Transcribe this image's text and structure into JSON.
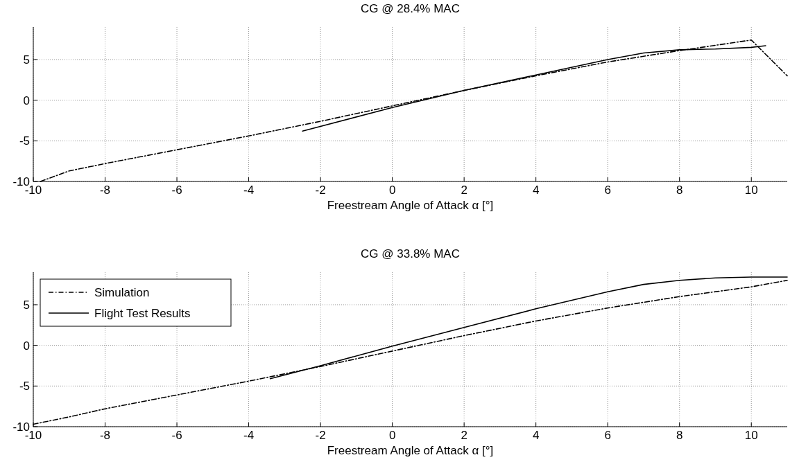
{
  "chart_data": [
    {
      "type": "line",
      "title": "CG @ 28.4% MAC",
      "xlabel": "Freestream Angle of Attack α [°]",
      "xlim": [
        -10,
        11
      ],
      "xticks": [
        -10,
        -8,
        -6,
        -4,
        -2,
        0,
        2,
        4,
        6,
        8,
        10
      ],
      "ylim": [
        -10,
        9
      ],
      "yticks": [
        -10,
        -5,
        0,
        5
      ],
      "grid": true,
      "legend": false,
      "series": [
        {
          "color": "#000000",
          "line_style": "dashed",
          "x": [
            -9.8,
            -9,
            -8,
            -6,
            -4,
            -2,
            0,
            2,
            4,
            6,
            8,
            10,
            11
          ],
          "values": [
            -10,
            -8.7,
            -7.8,
            -6.1,
            -4.4,
            -2.6,
            -0.7,
            1.2,
            3.0,
            4.7,
            6.1,
            7.4,
            3.0
          ]
        },
        {
          "color": "#000000",
          "line_style": "solid",
          "x": [
            -2.5,
            0,
            2,
            4,
            6,
            7,
            8,
            9,
            10,
            10.4
          ],
          "values": [
            -3.8,
            -0.9,
            1.2,
            3.1,
            5.0,
            5.8,
            6.2,
            6.3,
            6.5,
            6.7
          ]
        }
      ]
    },
    {
      "type": "line",
      "title": "CG @ 33.8% MAC",
      "xlabel": "Freestream Angle of Attack α [°]",
      "xlim": [
        -10,
        11
      ],
      "xticks": [
        -10,
        -8,
        -6,
        -4,
        -2,
        0,
        2,
        4,
        6,
        8,
        10
      ],
      "ylim": [
        -10,
        9
      ],
      "yticks": [
        -10,
        -5,
        0,
        5
      ],
      "grid": true,
      "legend": "top left",
      "series": [
        {
          "name": "Simulation",
          "color": "#000000",
          "line_style": "dashed",
          "x": [
            -10,
            -9,
            -8,
            -6,
            -4,
            -2,
            0,
            2,
            4,
            6,
            8,
            10,
            11
          ],
          "values": [
            -9.7,
            -8.8,
            -7.8,
            -6.1,
            -4.4,
            -2.6,
            -0.7,
            1.2,
            3.0,
            4.6,
            6.0,
            7.2,
            8.0
          ]
        },
        {
          "name": "Flight Test Results",
          "color": "#000000",
          "line_style": "solid",
          "x": [
            -3.4,
            -2,
            0,
            2,
            4,
            6,
            7,
            8,
            9,
            10,
            11
          ],
          "values": [
            -4.1,
            -2.5,
            -0.1,
            2.2,
            4.5,
            6.6,
            7.5,
            8.0,
            8.3,
            8.4,
            8.4
          ]
        }
      ]
    }
  ]
}
